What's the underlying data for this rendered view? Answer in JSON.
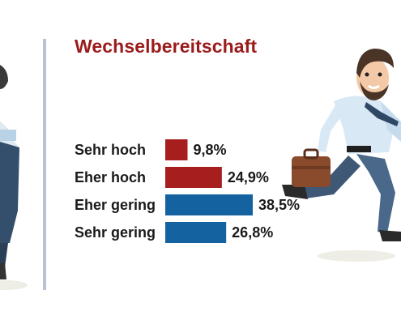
{
  "title": "Wechselbereitschaft",
  "colors": {
    "title": "#9b1b1b",
    "positive": "#a61e1e",
    "negative": "#1462a0",
    "divider": "#b9c4d2"
  },
  "illustrations": {
    "left": "running-businessman-icon",
    "right": "running-businessman-with-briefcase-icon"
  },
  "chart_data": {
    "type": "bar",
    "orientation": "horizontal",
    "title": "Wechselbereitschaft",
    "categories": [
      "Sehr hoch",
      "Eher hoch",
      "Eher gering",
      "Sehr gering"
    ],
    "values": [
      9.8,
      24.9,
      38.5,
      26.8
    ],
    "value_labels": [
      "9,8%",
      "24,9%",
      "38,5%",
      "26,8%"
    ],
    "bar_colors": [
      "#a61e1e",
      "#a61e1e",
      "#1462a0",
      "#1462a0"
    ],
    "xlim": [
      0,
      40
    ],
    "grid": false,
    "legend": "none"
  }
}
